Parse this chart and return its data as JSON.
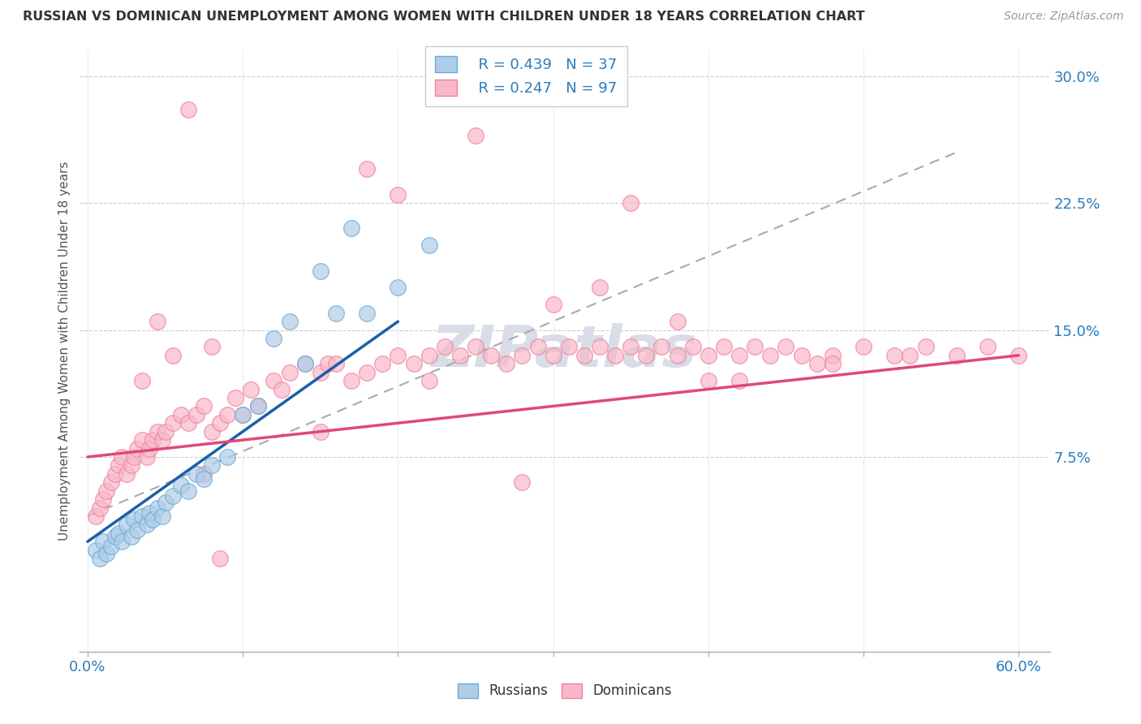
{
  "title": "RUSSIAN VS DOMINICAN UNEMPLOYMENT AMONG WOMEN WITH CHILDREN UNDER 18 YEARS CORRELATION CHART",
  "source": "Source: ZipAtlas.com",
  "ylabel": "Unemployment Among Women with Children Under 18 years",
  "xlim": [
    -0.005,
    0.62
  ],
  "ylim": [
    -0.04,
    0.315
  ],
  "ytick_vals": [
    0.075,
    0.15,
    0.225,
    0.3
  ],
  "ytick_labels": [
    "7.5%",
    "15.0%",
    "22.5%",
    "30.0%"
  ],
  "xtick_vals": [
    0.0,
    0.1,
    0.2,
    0.3,
    0.4,
    0.5,
    0.6
  ],
  "xtick_labels": [
    "0.0%",
    "",
    "",
    "",
    "",
    "",
    "60.0%"
  ],
  "legend_russian_r": "R = 0.439",
  "legend_russian_n": "N = 37",
  "legend_dominican_r": "R = 0.247",
  "legend_dominican_n": "N = 97",
  "russian_fill": "#aecde8",
  "russian_edge": "#6aaad4",
  "dominican_fill": "#f8b8c8",
  "dominican_edge": "#f080a0",
  "russian_trend_color": "#1a5fa8",
  "dominican_trend_color": "#e04878",
  "dashed_trend_color": "#aaaaaa",
  "watermark_color": "#d8dde8",
  "rus_x": [
    0.005,
    0.008,
    0.01,
    0.012,
    0.015,
    0.018,
    0.02,
    0.022,
    0.025,
    0.028,
    0.03,
    0.032,
    0.035,
    0.038,
    0.04,
    0.042,
    0.045,
    0.048,
    0.05,
    0.055,
    0.06,
    0.065,
    0.07,
    0.075,
    0.08,
    0.09,
    0.1,
    0.11,
    0.12,
    0.13,
    0.14,
    0.15,
    0.16,
    0.17,
    0.18,
    0.2,
    0.22
  ],
  "rus_y": [
    0.02,
    0.015,
    0.025,
    0.018,
    0.022,
    0.028,
    0.03,
    0.025,
    0.035,
    0.028,
    0.038,
    0.032,
    0.04,
    0.035,
    0.042,
    0.038,
    0.045,
    0.04,
    0.048,
    0.052,
    0.058,
    0.055,
    0.065,
    0.062,
    0.07,
    0.075,
    0.1,
    0.105,
    0.145,
    0.155,
    0.13,
    0.185,
    0.16,
    0.21,
    0.16,
    0.175,
    0.2
  ],
  "dom_x": [
    0.005,
    0.008,
    0.01,
    0.012,
    0.015,
    0.018,
    0.02,
    0.022,
    0.025,
    0.028,
    0.03,
    0.032,
    0.035,
    0.038,
    0.04,
    0.042,
    0.045,
    0.048,
    0.05,
    0.055,
    0.06,
    0.065,
    0.07,
    0.075,
    0.08,
    0.085,
    0.09,
    0.095,
    0.1,
    0.105,
    0.11,
    0.12,
    0.125,
    0.13,
    0.14,
    0.15,
    0.155,
    0.16,
    0.17,
    0.18,
    0.19,
    0.2,
    0.21,
    0.22,
    0.23,
    0.24,
    0.25,
    0.26,
    0.27,
    0.28,
    0.29,
    0.3,
    0.31,
    0.32,
    0.33,
    0.34,
    0.35,
    0.36,
    0.37,
    0.38,
    0.39,
    0.4,
    0.41,
    0.42,
    0.43,
    0.44,
    0.45,
    0.46,
    0.47,
    0.48,
    0.5,
    0.52,
    0.54,
    0.56,
    0.58,
    0.6,
    0.25,
    0.3,
    0.2,
    0.35,
    0.4,
    0.15,
    0.18,
    0.22,
    0.28,
    0.33,
    0.38,
    0.42,
    0.48,
    0.53,
    0.08,
    0.055,
    0.035,
    0.065,
    0.045,
    0.075,
    0.085
  ],
  "dom_y": [
    0.04,
    0.045,
    0.05,
    0.055,
    0.06,
    0.065,
    0.07,
    0.075,
    0.065,
    0.07,
    0.075,
    0.08,
    0.085,
    0.075,
    0.08,
    0.085,
    0.09,
    0.085,
    0.09,
    0.095,
    0.1,
    0.095,
    0.1,
    0.105,
    0.09,
    0.095,
    0.1,
    0.11,
    0.1,
    0.115,
    0.105,
    0.12,
    0.115,
    0.125,
    0.13,
    0.125,
    0.13,
    0.13,
    0.12,
    0.125,
    0.13,
    0.135,
    0.13,
    0.135,
    0.14,
    0.135,
    0.14,
    0.135,
    0.13,
    0.135,
    0.14,
    0.135,
    0.14,
    0.135,
    0.14,
    0.135,
    0.14,
    0.135,
    0.14,
    0.135,
    0.14,
    0.135,
    0.14,
    0.135,
    0.14,
    0.135,
    0.14,
    0.135,
    0.13,
    0.135,
    0.14,
    0.135,
    0.14,
    0.135,
    0.14,
    0.135,
    0.265,
    0.165,
    0.23,
    0.225,
    0.12,
    0.09,
    0.245,
    0.12,
    0.06,
    0.175,
    0.155,
    0.12,
    0.13,
    0.135,
    0.14,
    0.135,
    0.12,
    0.28,
    0.155,
    0.065,
    0.015
  ],
  "rus_trend_x": [
    0.0,
    0.2
  ],
  "rus_trend_y": [
    0.025,
    0.155
  ],
  "dom_trend_x": [
    0.0,
    0.6
  ],
  "dom_trend_y": [
    0.075,
    0.135
  ],
  "dash_trend_x": [
    0.0,
    0.56
  ],
  "dash_trend_y": [
    0.04,
    0.255
  ]
}
